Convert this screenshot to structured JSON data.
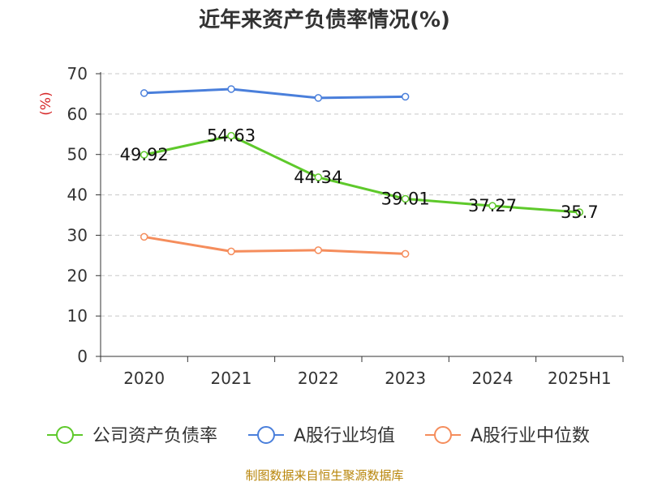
{
  "chart_data": {
    "type": "line",
    "title": "近年来资产负债率情况(%)",
    "ylabel": "(%)",
    "xlabel": "",
    "categories": [
      "2020",
      "2021",
      "2022",
      "2023",
      "2024",
      "2025H1"
    ],
    "ylim": [
      0,
      70
    ],
    "yticks": [
      "0",
      "10",
      "20",
      "30",
      "40",
      "50",
      "60",
      "70"
    ],
    "grid": true,
    "legend_position": "bottom",
    "series": [
      {
        "name": "公司资产负债率",
        "color": "#5ec92b",
        "values": [
          49.92,
          54.63,
          44.34,
          39.01,
          37.27,
          35.7
        ],
        "labels": [
          "49.92",
          "54.63",
          "44.34",
          "39.01",
          "37.27",
          "35.7"
        ]
      },
      {
        "name": "A股行业均值",
        "color": "#4a7fdb",
        "values": [
          65.2,
          66.2,
          64.0,
          64.3,
          null,
          null
        ]
      },
      {
        "name": "A股行业中位数",
        "color": "#f58d5c",
        "values": [
          29.6,
          26.0,
          26.3,
          25.4,
          null,
          null
        ]
      }
    ]
  },
  "footer": {
    "source": "制图数据来自恒生聚源数据库"
  }
}
